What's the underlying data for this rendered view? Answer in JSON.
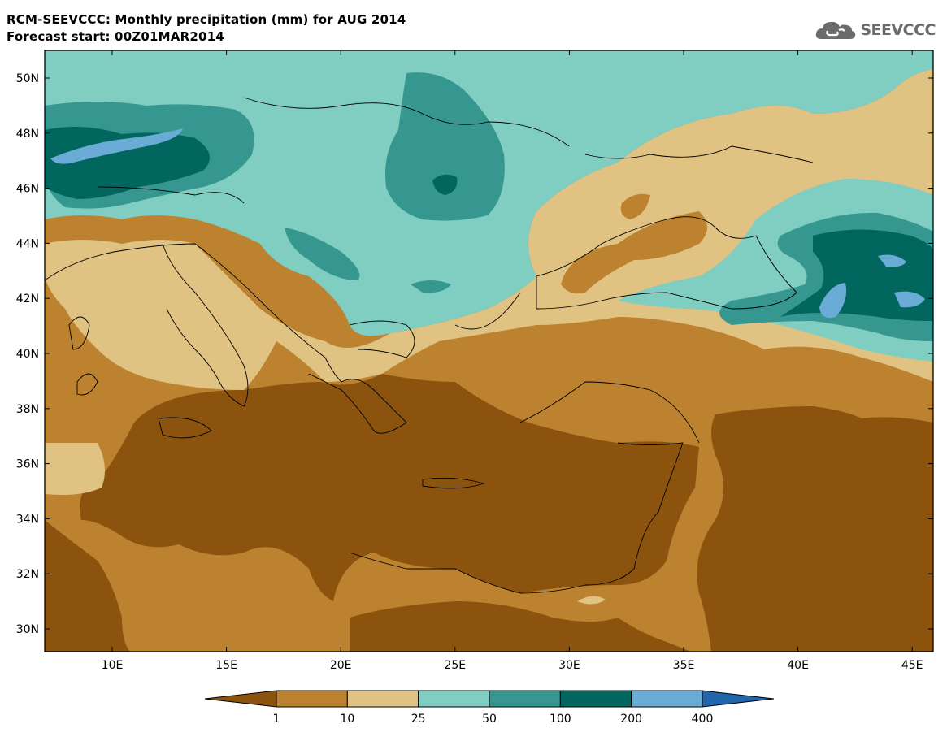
{
  "header": {
    "title_line1": "RCM-SEEVCCC: Monthly precipitation (mm) for AUG 2014",
    "title_line2": "Forecast start: 00Z01MAR2014"
  },
  "logo": {
    "text": "SEEVCCC",
    "icon": "cloud-icon"
  },
  "map": {
    "lat_labels": [
      "50N",
      "48N",
      "46N",
      "44N",
      "42N",
      "40N",
      "38N",
      "36N",
      "34N",
      "32N",
      "30N"
    ],
    "lon_labels": [
      "10E",
      "15E",
      "20E",
      "25E",
      "30E",
      "35E",
      "40E",
      "45E"
    ]
  },
  "colorbar": {
    "colors": [
      "#8c530f",
      "#bd822f",
      "#e0c283",
      "#80cdc1",
      "#35978f",
      "#01665e",
      "#6bacd6",
      "#2166ac"
    ],
    "levels": [
      "1",
      "10",
      "25",
      "50",
      "100",
      "200",
      "400"
    ]
  }
}
